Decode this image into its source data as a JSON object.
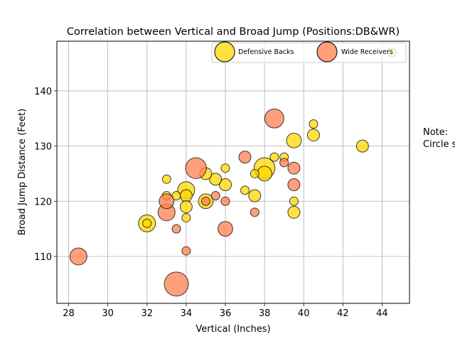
{
  "chart_data": {
    "type": "scatter",
    "title": "Correlation between Vertical and Broad Jump (Positions:DB&WR)",
    "xlabel": "Vertical (Inches)",
    "ylabel": "Broad Jump Distance (Feet)",
    "xlim": [
      27.4,
      45.4
    ],
    "ylim": [
      101.5,
      149
    ],
    "xticks": [
      "28",
      "30",
      "32",
      "34",
      "36",
      "38",
      "40",
      "42",
      "44"
    ],
    "yticks": [
      "110",
      "120",
      "130",
      "140"
    ],
    "grid": true,
    "legend_position": "top-right",
    "note": "Note:\nCircle s",
    "series": [
      {
        "name": "Defensive Backs",
        "color": "#FFD700",
        "points": [
          {
            "x": 43,
            "y": 130,
            "size": 2
          },
          {
            "x": 40.5,
            "y": 134,
            "size": 1
          },
          {
            "x": 40.5,
            "y": 132,
            "size": 2
          },
          {
            "x": 39.5,
            "y": 131,
            "size": 3
          },
          {
            "x": 39.5,
            "y": 120,
            "size": 1
          },
          {
            "x": 39.5,
            "y": 118,
            "size": 2
          },
          {
            "x": 39,
            "y": 128,
            "size": 1
          },
          {
            "x": 38.5,
            "y": 128,
            "size": 1
          },
          {
            "x": 38,
            "y": 126,
            "size": 6
          },
          {
            "x": 38,
            "y": 125,
            "size": 3
          },
          {
            "x": 37.5,
            "y": 125,
            "size": 1
          },
          {
            "x": 37.5,
            "y": 121,
            "size": 2
          },
          {
            "x": 37,
            "y": 122,
            "size": 1
          },
          {
            "x": 36,
            "y": 126,
            "size": 1
          },
          {
            "x": 36,
            "y": 123,
            "size": 2
          },
          {
            "x": 35.5,
            "y": 124,
            "size": 2
          },
          {
            "x": 35,
            "y": 125,
            "size": 2
          },
          {
            "x": 35,
            "y": 120,
            "size": 3
          },
          {
            "x": 34,
            "y": 122,
            "size": 4
          },
          {
            "x": 34,
            "y": 121,
            "size": 2
          },
          {
            "x": 34,
            "y": 119,
            "size": 2
          },
          {
            "x": 34,
            "y": 117,
            "size": 1
          },
          {
            "x": 33.5,
            "y": 121,
            "size": 1
          },
          {
            "x": 33,
            "y": 124,
            "size": 1
          },
          {
            "x": 33,
            "y": 121,
            "size": 1
          },
          {
            "x": 32,
            "y": 116,
            "size": 4
          },
          {
            "x": 32,
            "y": 116,
            "size": 1
          },
          {
            "x": 44.5,
            "y": 147,
            "size": 1
          }
        ]
      },
      {
        "name": "Wide Receivers",
        "color": "#FF7F50",
        "points": [
          {
            "x": 38.5,
            "y": 135,
            "size": 5
          },
          {
            "x": 37,
            "y": 128,
            "size": 2
          },
          {
            "x": 39,
            "y": 127,
            "size": 1
          },
          {
            "x": 39.5,
            "y": 126,
            "size": 2
          },
          {
            "x": 39.5,
            "y": 123,
            "size": 2
          },
          {
            "x": 37.5,
            "y": 118,
            "size": 1
          },
          {
            "x": 36,
            "y": 120,
            "size": 1
          },
          {
            "x": 36,
            "y": 115,
            "size": 3
          },
          {
            "x": 35.5,
            "y": 121,
            "size": 1
          },
          {
            "x": 35,
            "y": 120,
            "size": 1
          },
          {
            "x": 34.5,
            "y": 126,
            "size": 6
          },
          {
            "x": 34,
            "y": 111,
            "size": 1
          },
          {
            "x": 33.5,
            "y": 115,
            "size": 1
          },
          {
            "x": 33.5,
            "y": 105,
            "size": 8
          },
          {
            "x": 33,
            "y": 118,
            "size": 4
          },
          {
            "x": 33,
            "y": 120,
            "size": 3
          },
          {
            "x": 28.5,
            "y": 110,
            "size": 4
          }
        ]
      }
    ]
  }
}
